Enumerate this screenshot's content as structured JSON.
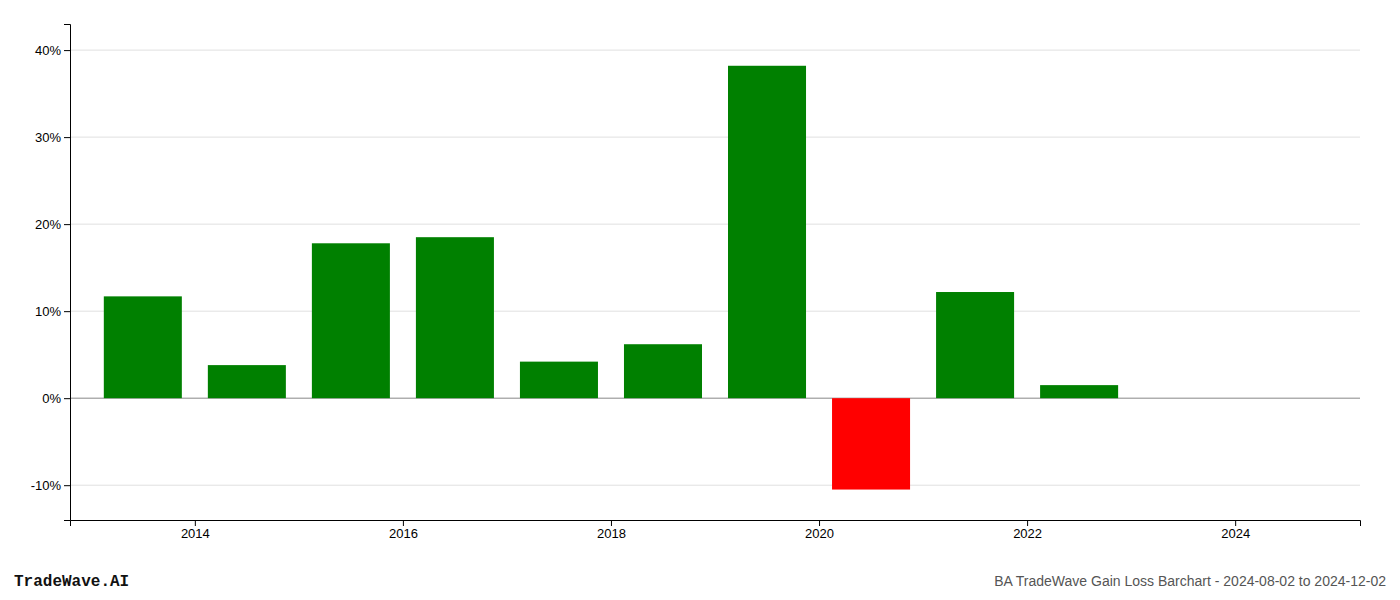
{
  "chart_data": {
    "type": "bar",
    "title": "BA TradeWave Gain Loss Barchart - 2024-08-02 to 2024-12-02",
    "annotations": [
      "TradeWave.AI"
    ],
    "x": [
      2013.5,
      2014.5,
      2015.5,
      2016.5,
      2017.5,
      2018.5,
      2019.5,
      2020.5,
      2021.5,
      2022.5
    ],
    "values": [
      11.7,
      3.8,
      17.8,
      18.5,
      4.2,
      6.2,
      38.2,
      -10.5,
      12.2,
      1.5
    ],
    "colors": [
      "#008000",
      "#008000",
      "#008000",
      "#008000",
      "#008000",
      "#008000",
      "#008000",
      "#ff0000",
      "#008000",
      "#008000"
    ],
    "xlim": [
      2012.8,
      2025.2
    ],
    "xticks": [
      2014,
      2016,
      2018,
      2020,
      2022,
      2024
    ],
    "ylim": [
      -14,
      43
    ],
    "yticks": [
      {
        "value": -10,
        "label": "-10%"
      },
      {
        "value": 0,
        "label": "0%"
      },
      {
        "value": 10,
        "label": "10%"
      },
      {
        "value": 20,
        "label": "20%"
      },
      {
        "value": 30,
        "label": "30%"
      },
      {
        "value": 40,
        "label": "40%"
      }
    ],
    "grid": true
  }
}
